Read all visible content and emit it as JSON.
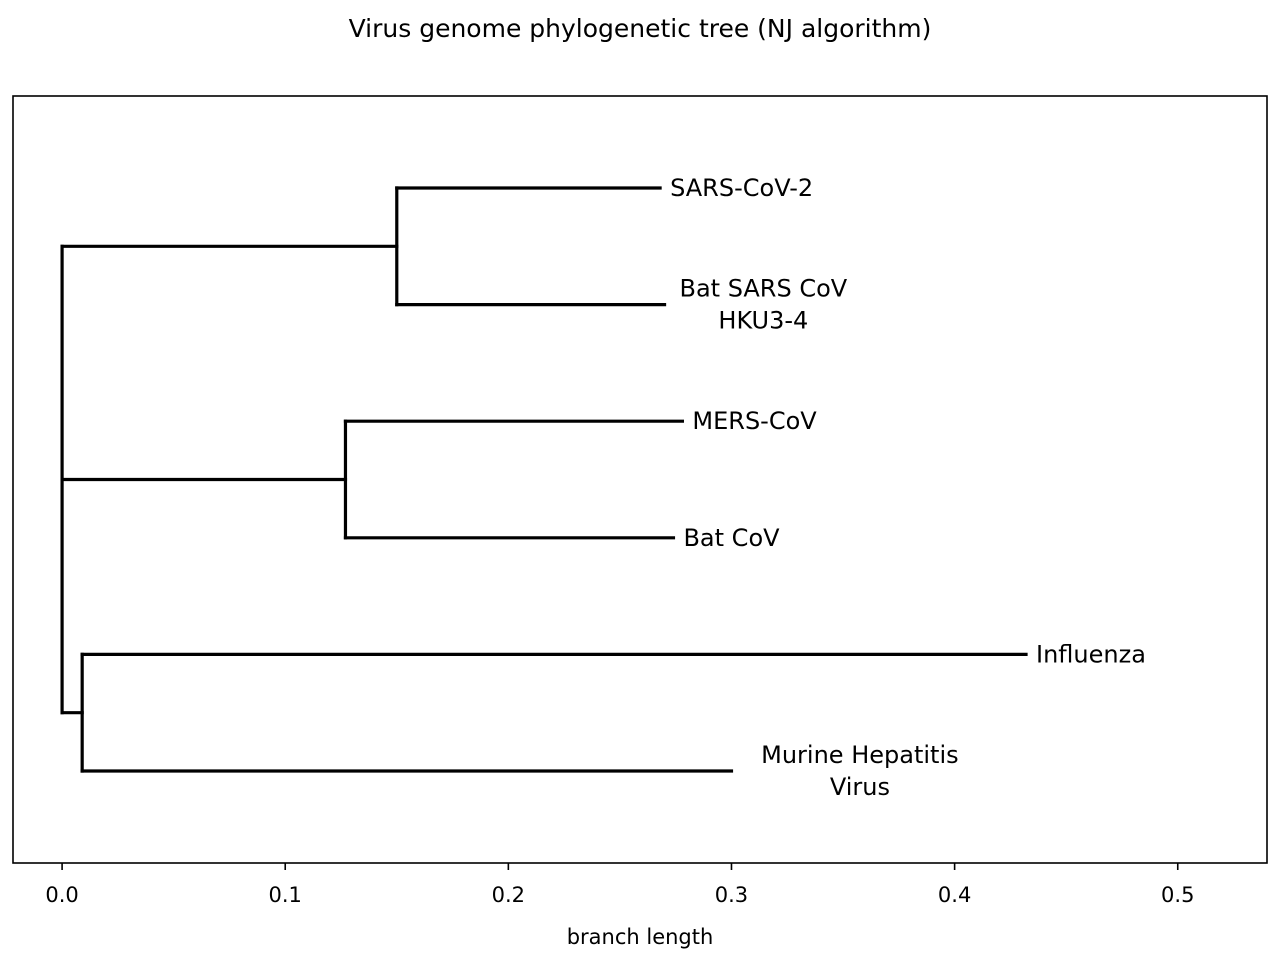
{
  "chart_data": {
    "type": "tree",
    "title": "Virus genome phylogenetic tree (NJ algorithm)",
    "xlabel": "branch length",
    "xlim": [
      -0.022,
      0.54
    ],
    "xticks": [
      0.0,
      0.1,
      0.2,
      0.3,
      0.4,
      0.5
    ],
    "xtick_labels": [
      "0.0",
      "0.1",
      "0.2",
      "0.3",
      "0.4",
      "0.5"
    ],
    "grid": false,
    "leaves": [
      {
        "label": [
          "SARS-CoV-2"
        ],
        "x": 0.268
      },
      {
        "label": [
          "Bat SARS CoV",
          "HKU3-4"
        ],
        "x": 0.27
      },
      {
        "label": [
          "MERS-CoV"
        ],
        "x": 0.278
      },
      {
        "label": [
          "Bat CoV"
        ],
        "x": 0.274
      },
      {
        "label": [
          "Influenza"
        ],
        "x": 0.432
      },
      {
        "label": [
          "Murine Hepatitis",
          "Virus"
        ],
        "x": 0.3
      }
    ],
    "nodes": [
      {
        "id": "root",
        "x": 0.0,
        "children": [
          "n_sars",
          "n_mers",
          "n_other"
        ]
      },
      {
        "id": "n_sars",
        "x": 0.15,
        "children": [
          0,
          1
        ]
      },
      {
        "id": "n_mers",
        "x": 0.127,
        "children": [
          2,
          3
        ]
      },
      {
        "id": "n_other",
        "x": 0.009,
        "children": [
          4,
          5
        ]
      }
    ]
  }
}
